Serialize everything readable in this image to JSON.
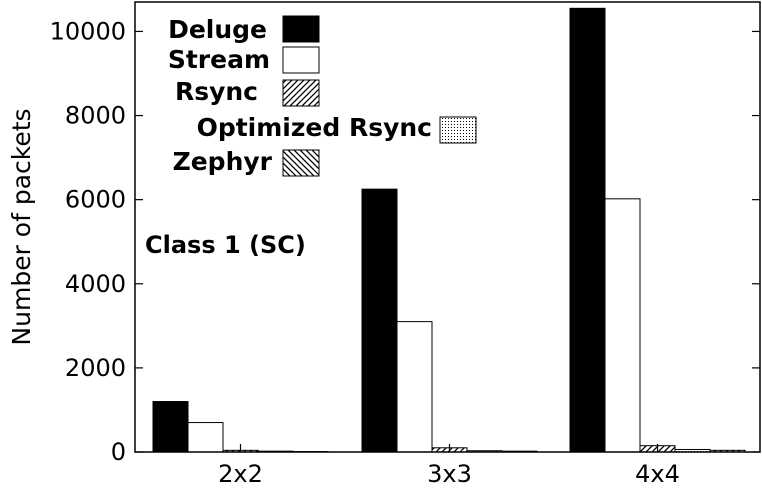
{
  "chart_data": {
    "type": "bar",
    "categories": [
      "2x2",
      "3x3",
      "4x4"
    ],
    "series": [
      {
        "name": "Deluge",
        "values": [
          1200,
          6250,
          10550
        ],
        "fill": "solid"
      },
      {
        "name": "Stream",
        "values": [
          700,
          3100,
          6020
        ],
        "fill": "white"
      },
      {
        "name": "Rsync",
        "values": [
          40,
          100,
          150
        ],
        "fill": "hatch-forward"
      },
      {
        "name": "Optimized Rsync",
        "values": [
          20,
          30,
          60
        ],
        "fill": "dots"
      },
      {
        "name": "Zephyr",
        "values": [
          10,
          20,
          40
        ],
        "fill": "hatch-back"
      }
    ],
    "ylabel": "Number of packets",
    "xlabel": "",
    "ylim": [
      0,
      10700
    ],
    "yticks": [
      0,
      2000,
      4000,
      6000,
      8000,
      10000
    ],
    "annotation": "Class 1 (SC)",
    "legend_placement": "top-left",
    "grid": false
  }
}
